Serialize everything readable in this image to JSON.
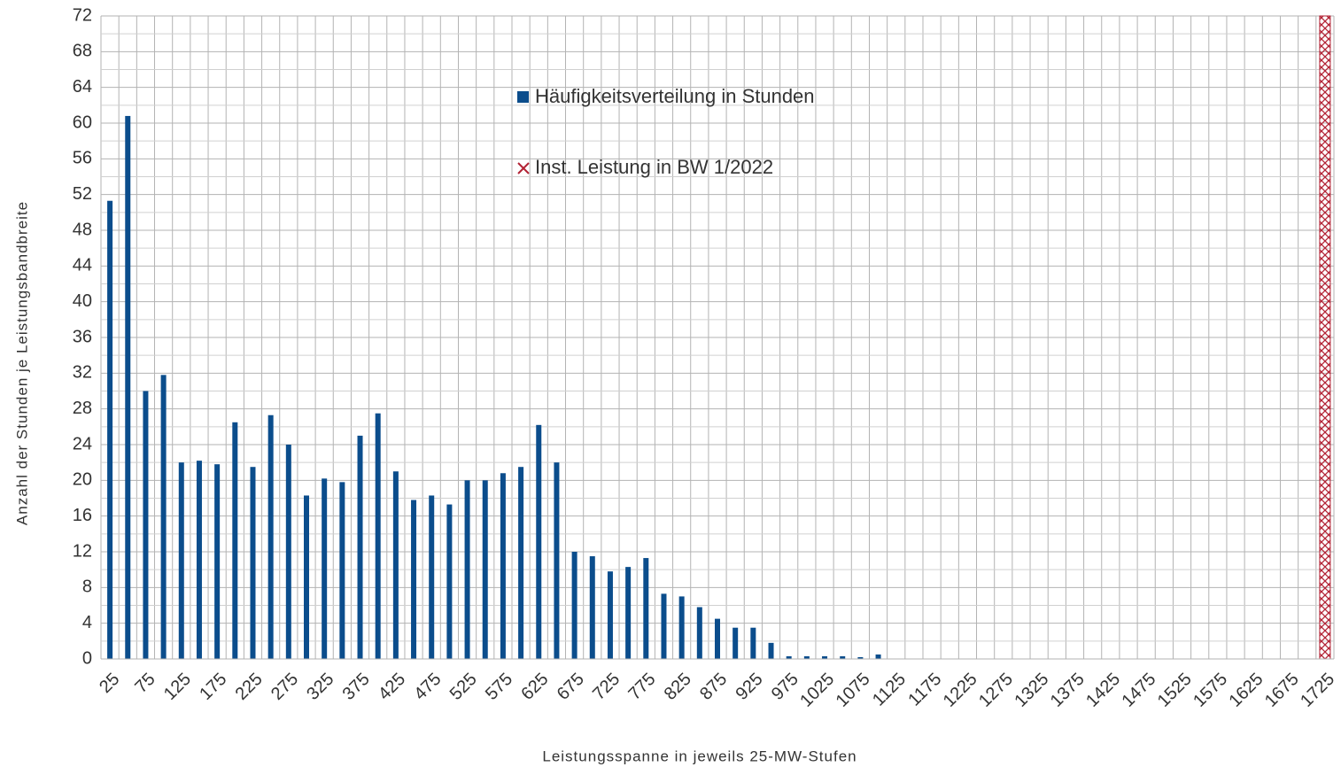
{
  "chart_data": {
    "type": "bar",
    "x_label": "Leistungsspanne in jeweils 25-MW-Stufen",
    "y_label": "Anzahl der Stunden je Leistungsbandbreite",
    "categories": [
      "25",
      null,
      "75",
      null,
      "125",
      null,
      "175",
      null,
      "225",
      null,
      "275",
      null,
      "325",
      null,
      "375",
      null,
      "425",
      null,
      "475",
      null,
      "525",
      null,
      "575",
      null,
      "625",
      null,
      "675",
      null,
      "725",
      null,
      "775",
      null,
      "825",
      null,
      "875",
      null,
      "925",
      null,
      "975",
      null,
      "1025",
      null,
      "1075",
      null,
      "1125",
      null,
      "1175",
      null,
      "1225",
      null,
      "1275",
      null,
      "1325",
      null,
      "1375",
      null,
      "1425",
      null,
      "1475",
      null,
      "1525",
      null,
      "1575",
      null,
      "1625",
      null,
      "1675",
      null,
      "1725"
    ],
    "series": [
      {
        "name": "Häufigkeitsverteilung in Stunden",
        "color": "#0b4d8c",
        "values": [
          51.3,
          60.8,
          30,
          31.8,
          22,
          22.2,
          21.8,
          26.5,
          21.5,
          27.3,
          24,
          18.3,
          20.2,
          19.8,
          25,
          27.5,
          21,
          17.8,
          18.3,
          17.3,
          20,
          20,
          20.8,
          21.5,
          26.2,
          22,
          12,
          11.5,
          9.8,
          10.3,
          11.3,
          7.3,
          7,
          5.8,
          4.5,
          3.5,
          3.5,
          1.8,
          0.3,
          0.3,
          0.3,
          0.3,
          0.2,
          0.5,
          null,
          null,
          null,
          null,
          null,
          null,
          null,
          null,
          null,
          null,
          null,
          null,
          null,
          null,
          null,
          null,
          null,
          null,
          null,
          null,
          null,
          null,
          null,
          null,
          null
        ]
      },
      {
        "name": "Inst. Leistung in BW 1/2022",
        "color": "#b22234",
        "values": [
          null,
          null,
          null,
          null,
          null,
          null,
          null,
          null,
          null,
          null,
          null,
          null,
          null,
          null,
          null,
          null,
          null,
          null,
          null,
          null,
          null,
          null,
          null,
          null,
          null,
          null,
          null,
          null,
          null,
          null,
          null,
          null,
          null,
          null,
          null,
          null,
          null,
          null,
          null,
          null,
          null,
          null,
          null,
          null,
          null,
          null,
          null,
          null,
          null,
          null,
          null,
          null,
          null,
          null,
          null,
          null,
          null,
          null,
          null,
          null,
          null,
          null,
          null,
          null,
          null,
          null,
          null,
          null,
          72
        ]
      }
    ],
    "ylim": [
      0,
      72
    ],
    "yticks": [
      0,
      4,
      8,
      12,
      16,
      20,
      24,
      28,
      32,
      36,
      40,
      44,
      48,
      52,
      56,
      60,
      64,
      68,
      72
    ],
    "grid": true
  }
}
